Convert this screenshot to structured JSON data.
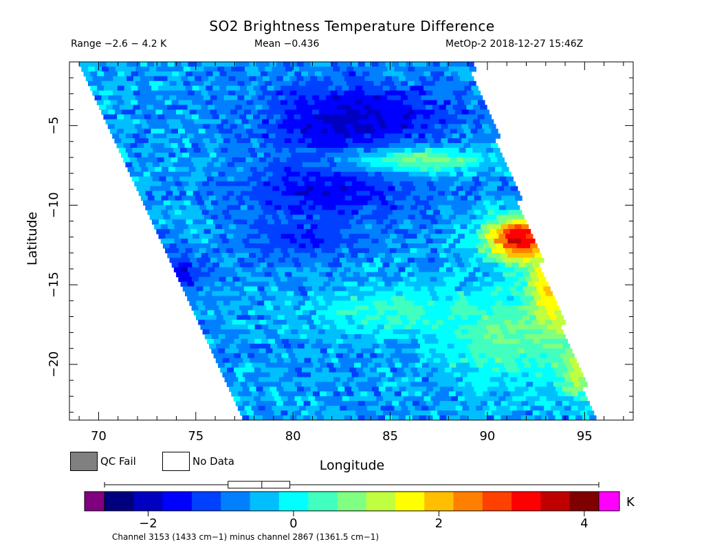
{
  "header": {
    "title": "SO2 Brightness Temperature Difference",
    "range": "Range −2.6 − 4.2 K",
    "mean": "Mean −0.436",
    "satellite_time": "MetOp-2 2018-12-27 15:46Z"
  },
  "legend": {
    "qc_fail_label": "QC Fail",
    "qc_fail_color": "#808080",
    "no_data_label": "No Data",
    "no_data_color": "#ffffff"
  },
  "colorbar": {
    "unit": "K",
    "vmin": -2.6,
    "vmax": 4.2,
    "ticks": [
      -2,
      0,
      2,
      4
    ],
    "tick_labels": [
      "−2",
      "0",
      "2",
      "4"
    ],
    "under_color": "#800080",
    "over_color": "#ff00ff",
    "colors": [
      "#00007f",
      "#0000c0",
      "#0000ff",
      "#0040ff",
      "#0080ff",
      "#00bfff",
      "#00ffff",
      "#40ffbf",
      "#80ff80",
      "#bfff40",
      "#ffff00",
      "#ffbf00",
      "#ff8000",
      "#ff4000",
      "#ff0000",
      "#c00000",
      "#800000"
    ],
    "boxplot": {
      "whisker_min": -2.6,
      "q1": -0.9,
      "median": -0.436,
      "q3": -0.05,
      "whisker_max": 4.2
    }
  },
  "footnote": "Channel 3153 (1433 cm−1) minus channel 2867 (1361.5 cm−1)",
  "chart_data": {
    "type": "heatmap",
    "title": "SO2 Brightness Temperature Difference",
    "xlabel": "Longitude",
    "ylabel": "Latitude",
    "xlim": [
      68.5,
      97.5
    ],
    "ylim": [
      -23.5,
      -1
    ],
    "x_ticks": [
      70,
      75,
      80,
      85,
      90,
      95
    ],
    "x_tick_labels": [
      "70",
      "75",
      "80",
      "85",
      "90",
      "95"
    ],
    "y_ticks": [
      -5,
      -10,
      -15,
      -20
    ],
    "y_tick_labels": [
      "−5",
      "−10",
      "−15",
      "−20"
    ],
    "swath": {
      "top_left": [
        69.0,
        -1.0
      ],
      "top_right": [
        89.0,
        -1.0
      ],
      "bottom_left": [
        77.5,
        -23.5
      ],
      "bottom_right": [
        95.5,
        -23.5
      ]
    },
    "background_value": -0.6,
    "features": [
      {
        "name": "dark-band-north",
        "lon": 83.0,
        "lat": -4.5,
        "rx": 5.0,
        "ry": 2.5,
        "value": -1.9
      },
      {
        "name": "dark-band-center",
        "lon": 81.5,
        "lat": -9.0,
        "rx": 4.5,
        "ry": 2.0,
        "value": -1.7
      },
      {
        "name": "dark-patch-west",
        "lon": 73.5,
        "lat": -14.2,
        "rx": 1.8,
        "ry": 1.2,
        "value": -1.8
      },
      {
        "name": "dark-mid",
        "lon": 80.5,
        "lat": -12.0,
        "rx": 3.0,
        "ry": 1.5,
        "value": -1.3
      },
      {
        "name": "light-streak-north",
        "lon": 86.5,
        "lat": -7.0,
        "rx": 3.5,
        "ry": 0.8,
        "value": 0.8
      },
      {
        "name": "light-belt-south",
        "lon": 85.0,
        "lat": -16.5,
        "rx": 4.0,
        "ry": 1.5,
        "value": 0.3
      },
      {
        "name": "hot-edge",
        "lon": 91.5,
        "lat": -12.0,
        "rx": 1.8,
        "ry": 1.4,
        "value": 3.6
      },
      {
        "name": "warm-edge-strip",
        "lon": 93.0,
        "lat": -15.5,
        "rx": 1.2,
        "ry": 3.0,
        "value": 2.4
      },
      {
        "name": "warm-edge-south",
        "lon": 94.5,
        "lat": -20.0,
        "rx": 1.0,
        "ry": 2.0,
        "value": 1.5
      },
      {
        "name": "mild-east",
        "lon": 90.5,
        "lat": -18.0,
        "rx": 3.0,
        "ry": 3.0,
        "value": 0.6
      }
    ]
  }
}
